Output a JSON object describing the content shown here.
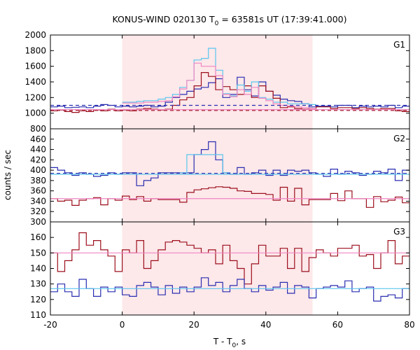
{
  "chart_data": {
    "type": "line",
    "title": "KONUS-WIND 020130 T",
    "title_sub": "0",
    "title_rest": " = 63581s UT (17:39:41.000)",
    "xlabel": "T - T",
    "xlabel_sub": "0",
    "xlabel_rest": ", s",
    "ylabel": "counts / sec",
    "xlim": [
      -20,
      80
    ],
    "xticks": [
      "-20",
      "0",
      "20",
      "40",
      "60",
      "80"
    ],
    "shaded_interval": [
      0,
      53
    ],
    "colors": {
      "shade": "#fde8ea",
      "blue": "#2a2eb0",
      "darkred": "#9c0f1c",
      "lightblue": "#5bc6ee",
      "pink": "#ef86c2"
    },
    "panels": [
      {
        "label": "G1",
        "ylim": [
          800,
          2000
        ],
        "yticks": [
          "800",
          "1000",
          "1200",
          "1400",
          "1600",
          "1800",
          "2000"
        ],
        "series": [
          {
            "style": "step",
            "color": "blue",
            "x": [
              -20,
              -18,
              -16,
              -14,
              -12,
              -10,
              -8,
              -6,
              -4,
              -2,
              0,
              2,
              4,
              6,
              8,
              10,
              12,
              14,
              16,
              18,
              20,
              22,
              24,
              26,
              28,
              30,
              32,
              34,
              36,
              38,
              40,
              42,
              44,
              46,
              48,
              50,
              52,
              54,
              56,
              58,
              60,
              62,
              64,
              66,
              68,
              70,
              72,
              74,
              76,
              78
            ],
            "y": [
              1080,
              1090,
              1070,
              1075,
              1080,
              1070,
              1090,
              1110,
              1100,
              1080,
              1090,
              1080,
              1090,
              1100,
              1080,
              1090,
              1140,
              1200,
              1240,
              1280,
              1310,
              1330,
              1390,
              1440,
              1200,
              1240,
              1460,
              1300,
              1220,
              1400,
              1280,
              1230,
              1180,
              1160,
              1150,
              1120,
              1080,
              1090,
              1090,
              1080,
              1100,
              1100,
              1070,
              1090,
              1080,
              1090,
              1080,
              1100,
              1070,
              1090
            ]
          },
          {
            "style": "step",
            "color": "darkred",
            "x": [
              -20,
              -18,
              -16,
              -14,
              -12,
              -10,
              -8,
              -6,
              -4,
              -2,
              0,
              2,
              4,
              6,
              8,
              10,
              12,
              14,
              16,
              18,
              20,
              22,
              24,
              26,
              28,
              30,
              32,
              34,
              36,
              38,
              40,
              42,
              44,
              46,
              48,
              50,
              52,
              54,
              56,
              58,
              60,
              62,
              64,
              66,
              68,
              70,
              72,
              74,
              76,
              78
            ],
            "y": [
              1030,
              1040,
              1020,
              1010,
              1030,
              1020,
              1040,
              1030,
              1050,
              1030,
              1040,
              1030,
              1050,
              1060,
              1050,
              1040,
              1050,
              1100,
              1170,
              1200,
              1350,
              1520,
              1470,
              1300,
              1340,
              1300,
              1240,
              1350,
              1200,
              1350,
              1280,
              1190,
              1070,
              1080,
              1060,
              1050,
              1060,
              1080,
              1080,
              1060,
              1070,
              1070,
              1060,
              1070,
              1060,
              1050,
              1060,
              1060,
              1030,
              1020
            ]
          },
          {
            "style": "step",
            "color": "lightblue",
            "x": [
              0,
              2,
              4,
              6,
              8,
              10,
              12,
              14,
              16,
              18,
              20,
              22,
              24,
              26,
              28,
              30,
              32,
              34,
              36,
              38,
              40,
              42,
              44,
              46,
              48,
              50,
              52
            ],
            "y": [
              1140,
              1140,
              1150,
              1160,
              1160,
              1180,
              1200,
              1240,
              1330,
              1420,
              1680,
              1700,
              1830,
              1550,
              1250,
              1220,
              1360,
              1280,
              1400,
              1200,
              1180,
              1140,
              1140,
              1120,
              1120,
              1120,
              1110
            ]
          },
          {
            "style": "step",
            "color": "pink",
            "x": [
              0,
              2,
              4,
              6,
              8,
              10,
              12,
              14,
              16,
              18,
              20,
              22,
              24,
              26,
              28,
              30,
              32,
              34,
              36,
              38,
              40,
              42,
              44,
              46,
              48,
              50,
              52
            ],
            "y": [
              1130,
              1130,
              1130,
              1140,
              1140,
              1150,
              1160,
              1210,
              1310,
              1420,
              1640,
              1600,
              1600,
              1480,
              1240,
              1210,
              1300,
              1240,
              1330,
              1190,
              1160,
              1120,
              1100,
              1090,
              1080,
              1070,
              1060
            ]
          },
          {
            "style": "hline",
            "color": "blue",
            "dash": true,
            "y": 1100
          },
          {
            "style": "hline",
            "color": "darkred",
            "dash": true,
            "y": 1035
          },
          {
            "style": "hline",
            "color": "pink",
            "dash": false,
            "y": 1045
          }
        ]
      },
      {
        "label": "G2",
        "ylim": [
          300,
          480
        ],
        "yticks": [
          "300",
          "320",
          "340",
          "360",
          "380",
          "400",
          "420",
          "440",
          "460"
        ],
        "series": [
          {
            "style": "step",
            "color": "blue",
            "x": [
              -20,
              -18,
              -16,
              -14,
              -12,
              -10,
              -8,
              -6,
              -4,
              -2,
              0,
              2,
              4,
              6,
              8,
              10,
              12,
              14,
              16,
              18,
              20,
              22,
              24,
              26,
              28,
              30,
              32,
              34,
              36,
              38,
              40,
              42,
              44,
              46,
              48,
              50,
              52,
              54,
              56,
              58,
              60,
              62,
              64,
              66,
              68,
              70,
              72,
              74,
              76,
              78
            ],
            "y": [
              405,
              400,
              395,
              390,
              395,
              392,
              388,
              390,
              395,
              392,
              395,
              395,
              370,
              380,
              385,
              395,
              395,
              395,
              395,
              395,
              430,
              440,
              455,
              420,
              395,
              392,
              405,
              392,
              395,
              400,
              390,
              400,
              390,
              400,
              398,
              400,
              395,
              392,
              388,
              402,
              392,
              398,
              395,
              390,
              392,
              398,
              395,
              402,
              380,
              400
            ]
          },
          {
            "style": "step",
            "color": "darkred",
            "x": [
              -20,
              -18,
              -16,
              -14,
              -12,
              -10,
              -8,
              -6,
              -4,
              -2,
              0,
              2,
              4,
              6,
              8,
              10,
              12,
              14,
              16,
              18,
              20,
              22,
              24,
              26,
              28,
              30,
              32,
              34,
              36,
              38,
              40,
              42,
              44,
              46,
              48,
              50,
              52,
              54,
              56,
              58,
              60,
              62,
              64,
              66,
              68,
              70,
              72,
              74,
              76,
              78
            ],
            "y": [
              345,
              340,
              342,
              332,
              342,
              345,
              347,
              333,
              345,
              342,
              350,
              343,
              349,
              340,
              345,
              343,
              343,
              343,
              338,
              357,
              362,
              364,
              366,
              368,
              367,
              365,
              360,
              359,
              355,
              355,
              353,
              342,
              367,
              340,
              365,
              333,
              343,
              343,
              343,
              355,
              341,
              360,
              345,
              345,
              328,
              349,
              339,
              342,
              348,
              337
            ]
          },
          {
            "style": "step",
            "color": "lightblue",
            "x": [
              16,
              18,
              20,
              22,
              24,
              26,
              28
            ],
            "y": [
              395,
              430,
              430,
              430,
              430,
              430,
              395
            ]
          },
          {
            "style": "hline",
            "color": "blue",
            "dash": true,
            "y": 394
          },
          {
            "style": "hline",
            "color": "lightblue",
            "dash": false,
            "y": 392
          },
          {
            "style": "hline",
            "color": "pink",
            "dash": false,
            "y": 345
          }
        ]
      },
      {
        "label": "G3",
        "ylim": [
          110,
          170
        ],
        "yticks": [
          "110",
          "120",
          "130",
          "140",
          "150",
          "160"
        ],
        "series": [
          {
            "style": "step",
            "color": "darkred",
            "x": [
              -20,
              -18,
              -16,
              -14,
              -12,
              -10,
              -8,
              -6,
              -4,
              -2,
              0,
              2,
              4,
              6,
              8,
              10,
              12,
              14,
              16,
              18,
              20,
              22,
              24,
              26,
              28,
              30,
              32,
              34,
              36,
              38,
              40,
              42,
              44,
              46,
              48,
              50,
              52,
              54,
              56,
              58,
              60,
              62,
              64,
              66,
              68,
              70,
              72,
              74,
              76,
              78
            ],
            "y": [
              150,
              138,
              145,
              152,
              163,
              155,
              158,
              152,
              148,
              138,
              152,
              150,
              158,
              140,
              145,
              152,
              157,
              158,
              157,
              155,
              153,
              150,
              152,
              143,
              155,
              145,
              140,
              130,
              143,
              155,
              148,
              148,
              153,
              140,
              153,
              138,
              147,
              152,
              150,
              148,
              153,
              153,
              155,
              148,
              149,
              140,
              150,
              158,
              143,
              148
            ]
          },
          {
            "style": "step",
            "color": "blue",
            "x": [
              -20,
              -18,
              -16,
              -14,
              -12,
              -10,
              -8,
              -6,
              -4,
              -2,
              0,
              2,
              4,
              6,
              8,
              10,
              12,
              14,
              16,
              18,
              20,
              22,
              24,
              26,
              28,
              30,
              32,
              34,
              36,
              38,
              40,
              42,
              44,
              46,
              48,
              50,
              52,
              54,
              56,
              58,
              60,
              62,
              64,
              66,
              68,
              70,
              72,
              74,
              76,
              78
            ],
            "y": [
              125,
              130,
              125,
              122,
              133,
              127,
              122,
              128,
              125,
              128,
              123,
              122,
              129,
              131,
              128,
              123,
              129,
              124,
              128,
              125,
              128,
              134,
              129,
              131,
              125,
              129,
              133,
              127,
              125,
              129,
              126,
              128,
              131,
              124,
              129,
              128,
              121,
              127,
              128,
              129,
              128,
              132,
              125,
              127,
              128,
              119,
              122,
              123,
              121,
              127
            ]
          },
          {
            "style": "hline",
            "color": "pink",
            "dash": false,
            "y": 150
          },
          {
            "style": "hline",
            "color": "lightblue",
            "dash": false,
            "y": 127
          }
        ]
      }
    ]
  }
}
